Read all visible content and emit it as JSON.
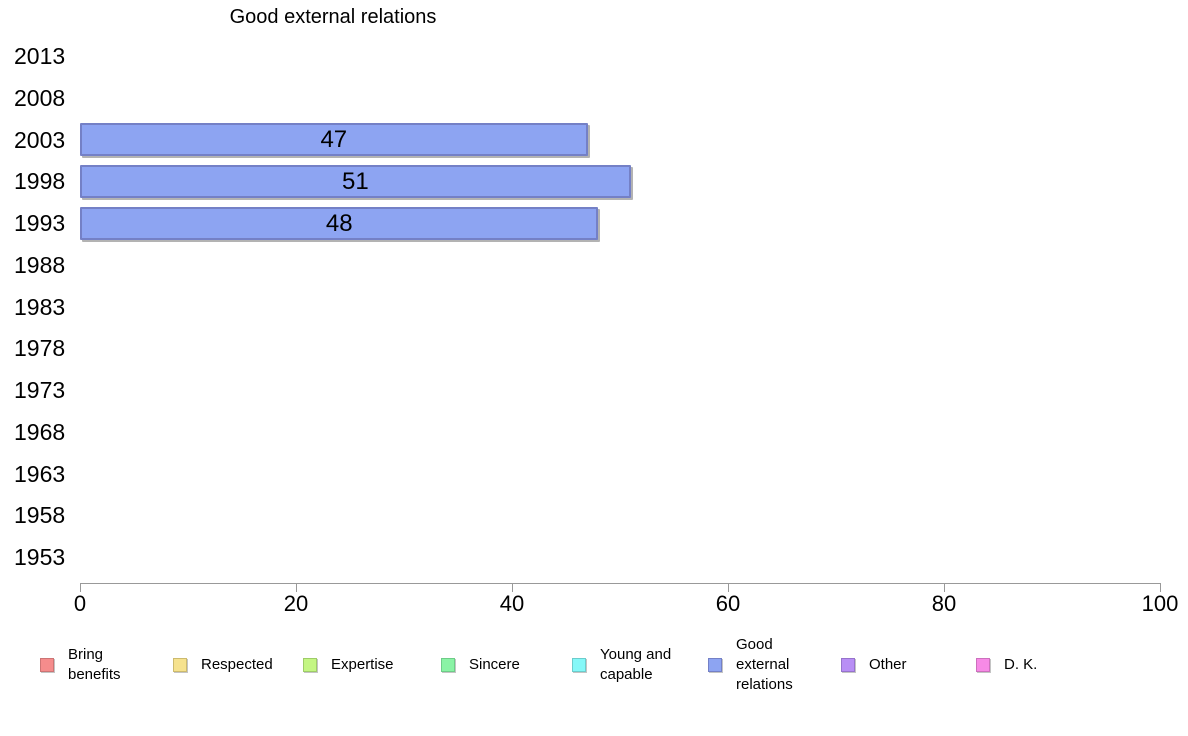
{
  "chart_data": {
    "type": "bar",
    "orientation": "horizontal",
    "title": "Good external relations",
    "categories": [
      "2013",
      "2008",
      "2003",
      "1998",
      "1993",
      "1988",
      "1983",
      "1978",
      "1973",
      "1968",
      "1963",
      "1958",
      "1953"
    ],
    "series": [
      {
        "name": "Good external relations",
        "values": [
          null,
          null,
          47,
          51,
          48,
          null,
          null,
          null,
          null,
          null,
          null,
          null,
          null
        ]
      }
    ],
    "value_labels_shown": true,
    "xlim": [
      0,
      100
    ],
    "xticks": [
      0,
      20,
      40,
      60,
      80,
      100
    ],
    "grid": false,
    "legend_position": "bottom",
    "bar_color": "#8da4f2",
    "bar_border_color": "#7480c6",
    "axis_color": "#999999",
    "legend": [
      {
        "label": "Bring benefits",
        "color": "#f58c8c",
        "border": "#cc7474"
      },
      {
        "label": "Respected",
        "color": "#f6e28e",
        "border": "#ccba6e"
      },
      {
        "label": "Expertise",
        "color": "#c4f683",
        "border": "#9ecc68"
      },
      {
        "label": "Sincere",
        "color": "#8af3a5",
        "border": "#6ecc88"
      },
      {
        "label": "Young and capable",
        "color": "#85f8f8",
        "border": "#6ccccc"
      },
      {
        "label": "Good external relations",
        "color": "#8da4f2",
        "border": "#7480c6"
      },
      {
        "label": "Other",
        "color": "#b88ef5",
        "border": "#9673cc"
      },
      {
        "label": "D. K.",
        "color": "#f78ae6",
        "border": "#cc70bd"
      }
    ]
  }
}
